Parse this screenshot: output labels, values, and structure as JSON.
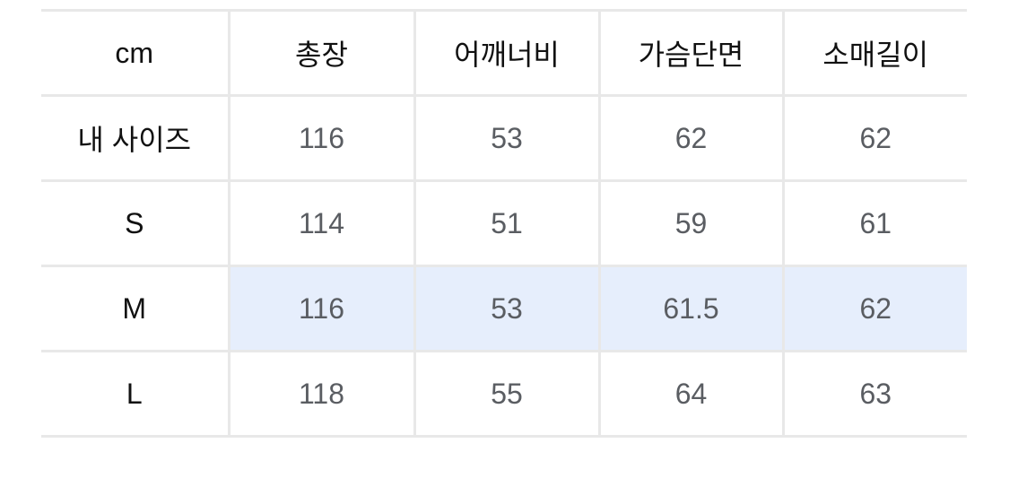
{
  "size_table": {
    "header": [
      "cm",
      "총장",
      "어깨너비",
      "가슴단면",
      "소매길이"
    ],
    "rows": [
      {
        "label": "내 사이즈",
        "values": [
          "116",
          "53",
          "62",
          "62"
        ]
      },
      {
        "label": "S",
        "values": [
          "114",
          "51",
          "59",
          "61"
        ]
      },
      {
        "label": "M",
        "values": [
          "116",
          "53",
          "61.5",
          "62"
        ],
        "highlighted": true
      },
      {
        "label": "L",
        "values": [
          "118",
          "55",
          "64",
          "63"
        ]
      }
    ],
    "highlight_color": "#e6eefc"
  }
}
